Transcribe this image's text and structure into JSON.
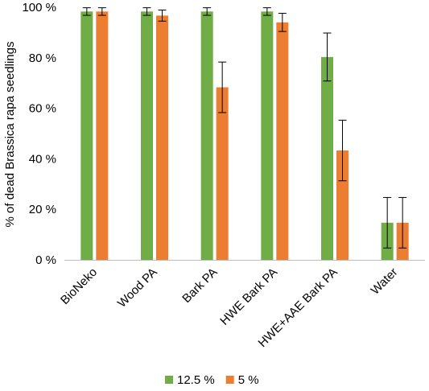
{
  "chart_data": {
    "type": "bar",
    "title": "",
    "xlabel": "",
    "ylabel": "% of dead Brassica rapa seedlings",
    "ylim": [
      0,
      100
    ],
    "yticks": [
      0,
      20,
      40,
      60,
      80,
      100
    ],
    "ytick_labels": [
      "0 %",
      "20 %",
      "40 %",
      "60 %",
      "80 %",
      "100 %"
    ],
    "grid": false,
    "legend_position": "bottom",
    "categories": [
      "BioNeko",
      "Wood PA",
      "Bark PA",
      "HWE Bark PA",
      "HWE+AAE Bark PA",
      "Water"
    ],
    "series": [
      {
        "name": "12.5 %",
        "color": "#70AD47",
        "values": [
          98.3,
          98.3,
          98.3,
          98.3,
          80.3,
          14.7
        ],
        "errors": [
          1.5,
          1.5,
          1.5,
          1.5,
          9.5,
          10.0
        ]
      },
      {
        "name": "5 %",
        "color": "#ED7D31",
        "values": [
          98.3,
          96.7,
          68.3,
          94.0,
          43.3,
          14.7
        ],
        "errors": [
          1.5,
          2.2,
          10.0,
          3.6,
          12.0,
          10.0
        ]
      }
    ]
  }
}
